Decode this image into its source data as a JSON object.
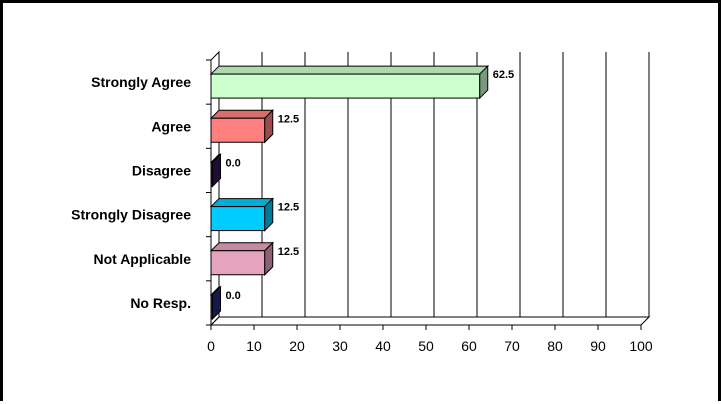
{
  "chart_data": {
    "type": "bar",
    "orientation": "horizontal",
    "style": "3d",
    "categories": [
      "Strongly Agree",
      "Agree",
      "Disagree",
      "Strongly Disagree",
      "Not Applicable",
      "No Resp."
    ],
    "values": [
      62.5,
      12.5,
      0.0,
      12.5,
      12.5,
      0.0
    ],
    "value_labels": [
      "62.5",
      "12.5",
      "0.0",
      "12.5",
      "12.5",
      "0.0"
    ],
    "colors": [
      "#ccffcc",
      "#ff7f7f",
      "#33165a",
      "#00ccff",
      "#e6a3bd",
      "#1f2a80"
    ],
    "xlim": [
      0,
      100
    ],
    "xticks": [
      "0",
      "10",
      "20",
      "30",
      "40",
      "50",
      "60",
      "70",
      "80",
      "90",
      "100"
    ],
    "grid": true,
    "title": "",
    "xlabel": "",
    "ylabel": ""
  }
}
